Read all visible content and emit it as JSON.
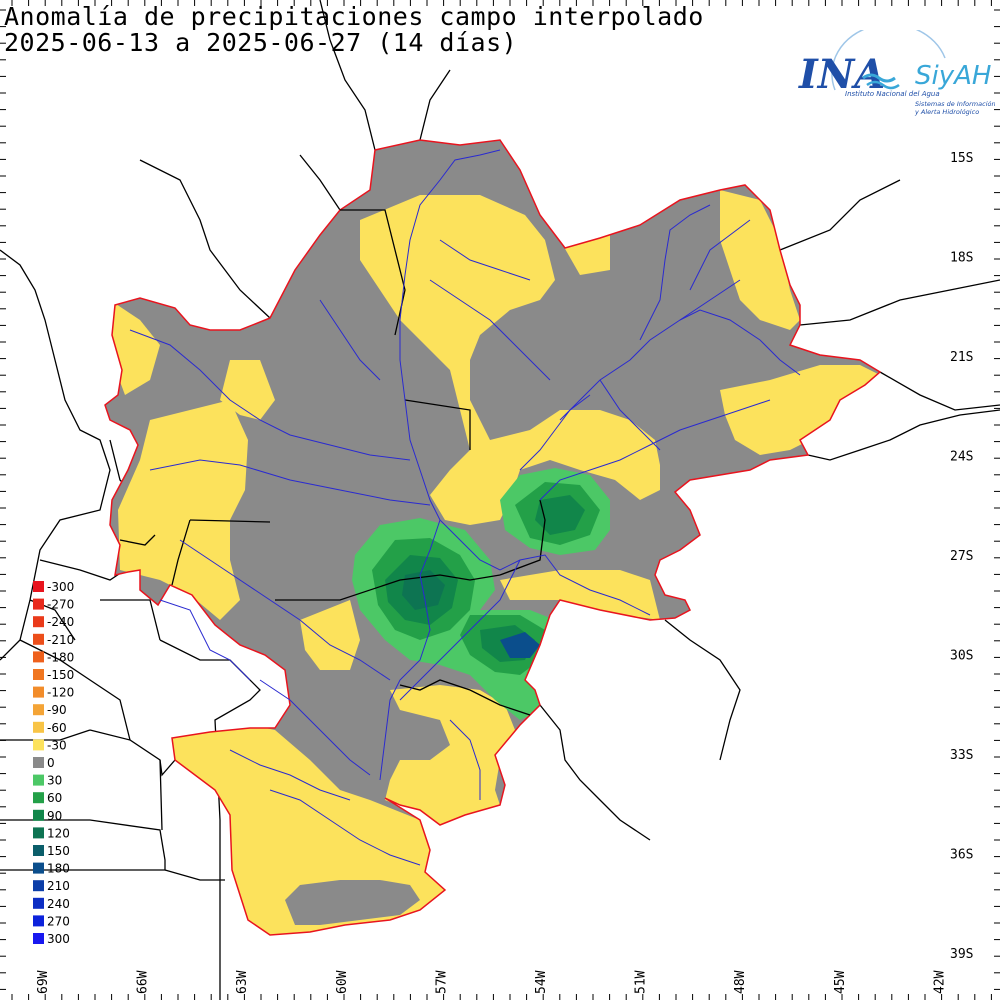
{
  "title": {
    "line1": "Anomalía de precipitaciones campo interpolado",
    "line2": "2025-06-13 a 2025-06-27 (14 días)"
  },
  "logo": {
    "brand": "INA",
    "brand_accent": "#1f4fa8",
    "product": "SiyAH",
    "subtitle1": "Instituto Nacional del Agua",
    "subtitle2": "Sistemas de Información",
    "subtitle3": "y Alerta Hidrológico"
  },
  "lat_labels": [
    "15S",
    "18S",
    "21S",
    "24S",
    "27S",
    "30S",
    "33S",
    "36S",
    "39S"
  ],
  "lon_labels": [
    "69W",
    "66W",
    "63W",
    "60W",
    "57W",
    "54W",
    "51W",
    "48W",
    "45W",
    "42W"
  ],
  "legend": [
    {
      "label": "-300",
      "color": "#e8141e"
    },
    {
      "label": "-270",
      "color": "#e82a1c"
    },
    {
      "label": "-240",
      "color": "#ea3a1a"
    },
    {
      "label": "-210",
      "color": "#ec4e1a"
    },
    {
      "label": "-180",
      "color": "#ee601c"
    },
    {
      "label": "-150",
      "color": "#f07620"
    },
    {
      "label": "-120",
      "color": "#f28c2a"
    },
    {
      "label": "-90",
      "color": "#f4a436"
    },
    {
      "label": "-60",
      "color": "#f8c446"
    },
    {
      "label": "-30",
      "color": "#fce25c"
    },
    {
      "label": "0",
      "color": "#8a8a8a"
    },
    {
      "label": "30",
      "color": "#4cc866"
    },
    {
      "label": "60",
      "color": "#23a048"
    },
    {
      "label": "90",
      "color": "#11864a"
    },
    {
      "label": "120",
      "color": "#0d7452"
    },
    {
      "label": "150",
      "color": "#0b5e6a"
    },
    {
      "label": "180",
      "color": "#0b4e8c"
    },
    {
      "label": "210",
      "color": "#0c3ea8"
    },
    {
      "label": "240",
      "color": "#0c2ec4"
    },
    {
      "label": "270",
      "color": "#0c22dc"
    },
    {
      "label": "300",
      "color": "#1818f0"
    }
  ],
  "colors": {
    "gray": "#8a8a8a",
    "yellow": "#fce25c",
    "green_light": "#4cc866",
    "green_mid": "#23a048",
    "green_dark": "#11864a",
    "teal": "#0d7452",
    "blue": "#0b4e8c",
    "outline": "#e8141e",
    "river": "#2a2ad0",
    "border": "#000000"
  }
}
